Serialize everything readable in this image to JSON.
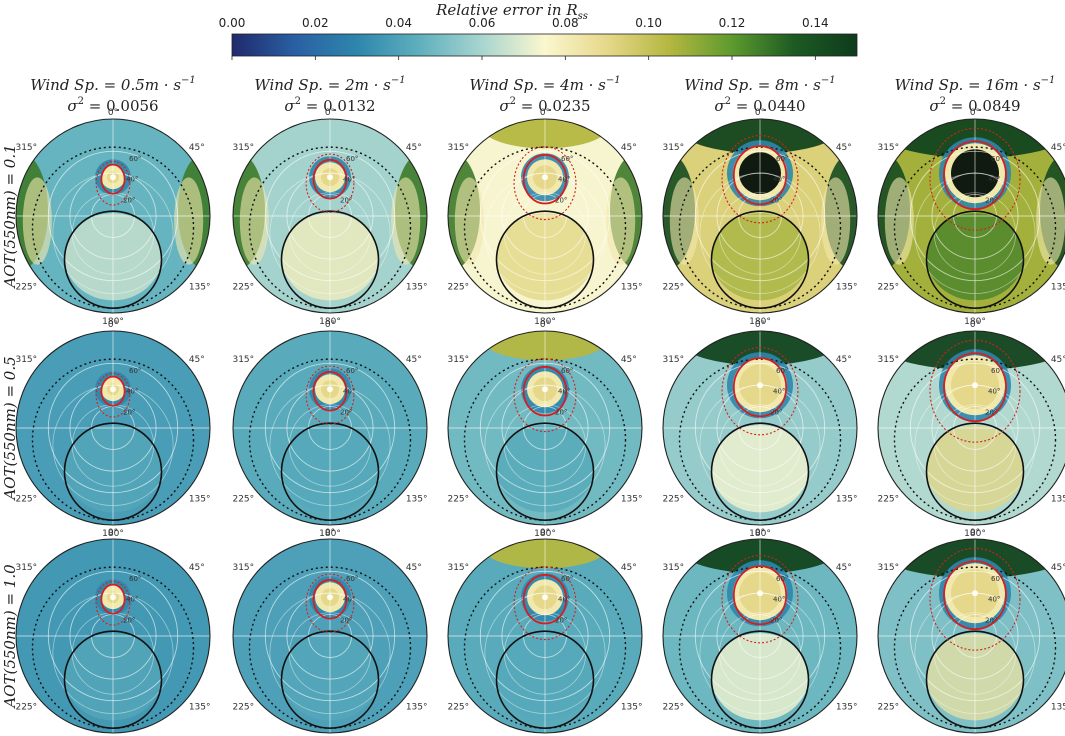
{
  "chart_data": {
    "type": "heatmap",
    "subtype": "polar-grid",
    "colorbar": {
      "title": "Relative error in R",
      "title_subscript": "ss",
      "ticks": [
        "0.00",
        "0.02",
        "0.04",
        "0.06",
        "0.08",
        "0.10",
        "0.12",
        "0.14"
      ],
      "tick_values": [
        0.0,
        0.02,
        0.04,
        0.06,
        0.08,
        0.1,
        0.12,
        0.14
      ],
      "range": [
        0.0,
        0.15
      ],
      "colors": [
        "#1f2a6b",
        "#2a5fa3",
        "#2e86ad",
        "#5fb0bd",
        "#a8d5cf",
        "#fbf7cf",
        "#e6d88a",
        "#b4b740",
        "#5d9a2e",
        "#1d5a23",
        "#0e3b1c"
      ]
    },
    "columns": [
      {
        "title": "Wind Sp. = 0.5m · s",
        "sigma_label": "σ",
        "sigma_value": "= 0.0056",
        "intensity": 0.18
      },
      {
        "title": "Wind Sp. = 2m · s",
        "sigma_label": "σ",
        "sigma_value": "= 0.0132",
        "intensity": 0.35
      },
      {
        "title": "Wind Sp. = 4m · s",
        "sigma_label": "σ",
        "sigma_value": "= 0.0235",
        "intensity": 0.55
      },
      {
        "title": "Wind Sp. = 8m · s",
        "sigma_label": "σ",
        "sigma_value": "= 0.0440",
        "intensity": 0.8
      },
      {
        "title": "Wind Sp. = 16m · s",
        "sigma_label": "σ",
        "sigma_value": "= 0.0849",
        "intensity": 1.0
      }
    ],
    "title_exponent": "−1",
    "sigma_exponent": "2",
    "rows": [
      {
        "label": "AOT(550nm) = 0.1",
        "level": 1.0
      },
      {
        "label": "AOT(550nm) = 0.5",
        "level": 0.55
      },
      {
        "label": "AOT(550nm) = 1.0",
        "level": 0.35
      }
    ],
    "azimuth_labels": {
      "top": "0°",
      "top_right": "45°",
      "top_left": "315°",
      "bottom_right": "135°",
      "bottom_left": "225°",
      "bottom": "180°"
    },
    "zenith_labels": [
      "20°",
      "40°",
      "60°"
    ]
  }
}
